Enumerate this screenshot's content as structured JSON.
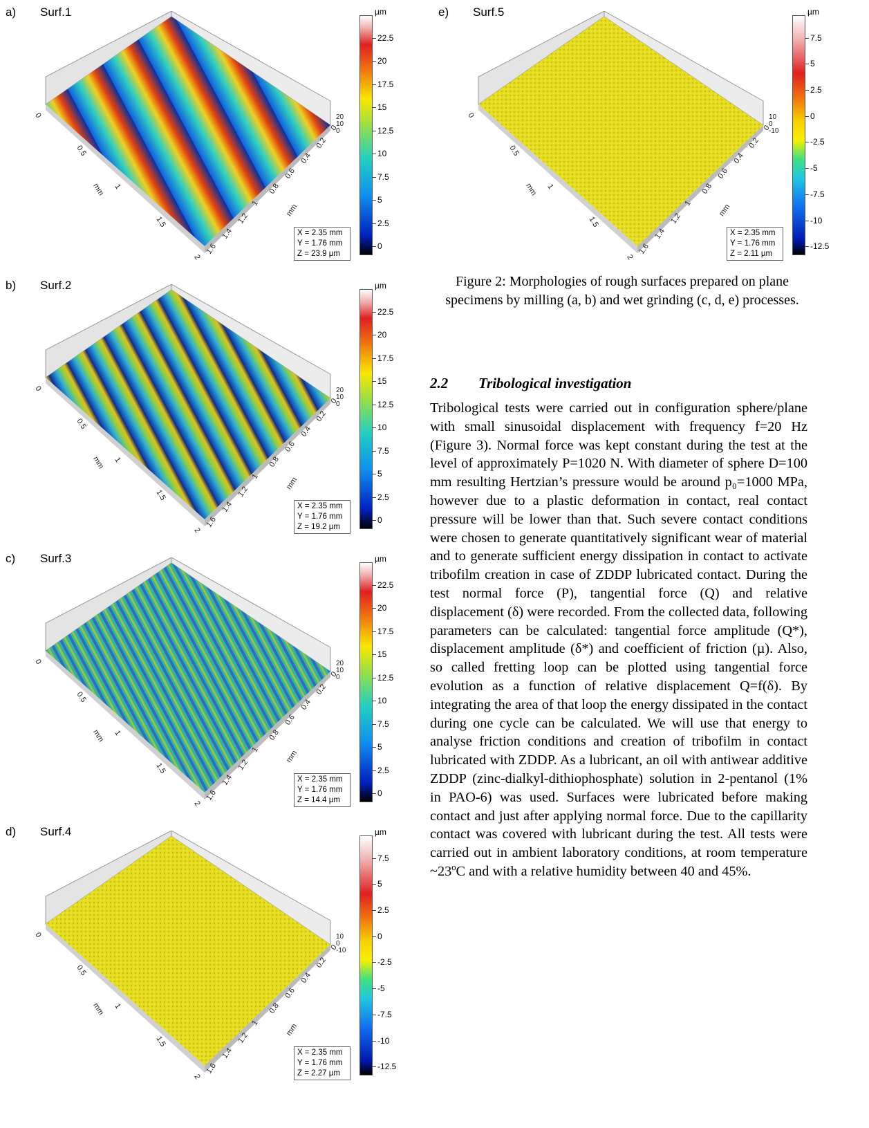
{
  "panels": [
    {
      "label": "a)",
      "name": "Surf.1",
      "unit": "µm",
      "ticks": [
        "22.5",
        "20",
        "17.5",
        "15",
        "12.5",
        "10",
        "7.5",
        "5",
        "2.5",
        "0"
      ],
      "x": "X = 2.35 mm",
      "y": "Y = 1.76 mm",
      "z": "Z = 23.9 µm",
      "zticks": [
        "20",
        "10",
        "0"
      ],
      "colormap": "blue-cyan-yellow-red",
      "pattern": "wide waves"
    },
    {
      "label": "b)",
      "name": "Surf.2",
      "unit": "µm",
      "ticks": [
        "22.5",
        "20",
        "17.5",
        "15",
        "12.5",
        "10",
        "7.5",
        "5",
        "2.5",
        "0"
      ],
      "x": "X = 2.35 mm",
      "y": "Y = 1.76 mm",
      "z": "Z = 19.2 µm",
      "zticks": [
        "20",
        "10",
        "0"
      ],
      "colormap": "blue-cyan-yellow-red",
      "pattern": "narrow ridges"
    },
    {
      "label": "c)",
      "name": "Surf.3",
      "unit": "µm",
      "ticks": [
        "22.5",
        "20",
        "17.5",
        "15",
        "12.5",
        "10",
        "7.5",
        "5",
        "2.5",
        "0"
      ],
      "x": "X = 2.35 mm",
      "y": "Y = 1.76 mm",
      "z": "Z = 14.4 µm",
      "zticks": [
        "20",
        "10",
        "0"
      ],
      "colormap": "blue-cyan-yellow-red",
      "pattern": "ground rough"
    },
    {
      "label": "d)",
      "name": "Surf.4",
      "unit": "µm",
      "ticks": [
        "7.5",
        "5",
        "2.5",
        "0",
        "-2.5",
        "-5",
        "-7.5",
        "-10",
        "-12.5"
      ],
      "x": "X = 2.35 mm",
      "y": "Y = 1.76 mm",
      "z": "Z = 2.27 µm",
      "zticks": [
        "10",
        "0",
        "-10"
      ],
      "colormap": "yellow",
      "pattern": "smooth"
    },
    {
      "label": "e)",
      "name": "Surf.5",
      "unit": "µm",
      "ticks": [
        "7.5",
        "5",
        "2.5",
        "0",
        "-2.5",
        "-5",
        "-7.5",
        "-10",
        "-12.5"
      ],
      "x": "X = 2.35 mm",
      "y": "Y = 1.76 mm",
      "z": "Z = 2.11 µm",
      "zticks": [
        "10",
        "0",
        "-10"
      ],
      "colormap": "yellow",
      "pattern": "smooth"
    }
  ],
  "axis": {
    "left_ticks": [
      "0",
      "0.5",
      "1",
      "1.5",
      "2"
    ],
    "right_ticks": [
      "1.6",
      "1.4",
      "1.2",
      "1",
      "0.8",
      "0.6",
      "0.4",
      "0.2",
      "0"
    ],
    "mm": "mm"
  },
  "caption": "Figure 2: Morphologies of rough surfaces prepared on plane specimens by milling (a, b) and wet grinding (c, d, e) processes.",
  "section": {
    "number": "2.2",
    "title": "Tribological investigation"
  },
  "paragraph": "Tribological tests were carried out in configuration sphere/plane with small sinusoidal displacement with frequency f=20 Hz (Figure 3). Normal force was kept constant during the test at the level of approximately P=1020 N. With diameter of sphere D=100 mm resulting Hertzian’s pressure would be around p₀=1000 MPa, however due to a plastic deformation in contact, real contact pressure will be lower than that. Such severe contact conditions were chosen to generate quantitatively significant wear of material and to generate sufficient energy dissipation in contact to activate tribofilm creation in case of ZDDP lubricated contact. During the test normal force (P), tangential force (Q) and relative displacement (δ) were recorded. From the collected data, following parameters can be calculated: tangential force amplitude (Q*), displacement amplitude (δ*) and coefficient of friction (µ). Also, so called fretting loop can be plotted using tangential force evolution as a function of relative displacement Q=f(δ). By integrating the area of that loop the energy dissipated in the contact during one cycle can be calculated. We will use that energy to analyse friction conditions and creation of tribofilm in contact lubricated with ZDDP. As a lubricant, an oil with antiwear additive ZDDP (zinc-dialkyl-dithiophosphate) solution in 2-pentanol (1% in PAO-6) was used. Surfaces were lubricated before making contact and just after applying normal force. Due to the capillarity contact was covered with lubricant during the test. All tests were carried out in ambient laboratory conditions, at room temperature ~23ºC and with a relative humidity between 40 and 45%."
}
